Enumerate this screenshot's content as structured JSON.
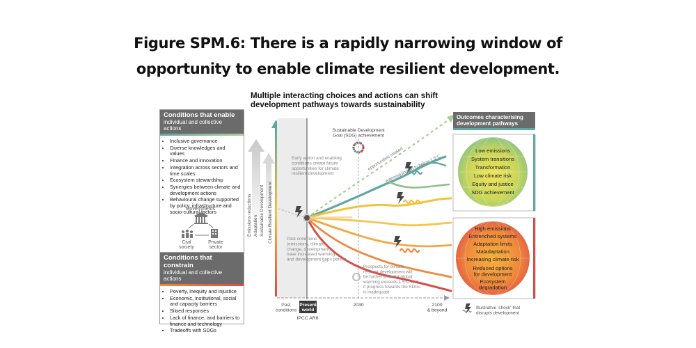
{
  "title": {
    "line1": "Figure SPM.6: There is a rapidly narrowing window of",
    "line2": "opportunity to enable climate resilient development."
  },
  "subtitle": {
    "line1": "Multiple interacting choices and actions can shift",
    "line2": "development pathways towards sustainability"
  },
  "enable_box": {
    "heading": "Conditions that enable",
    "subheading": "individual and collective actions",
    "items": [
      "Inclusive governance",
      "Diverse knowledges and values",
      "Finance and innovation",
      "Integration across sectors and time scales",
      "Ecosystem stewardship",
      "Synergies between climate and development actions",
      "Behavioural change supported by policy, infrastructure and socio-cultural factors"
    ],
    "actors": {
      "governments": "Governments",
      "civil_society": "Civil society",
      "private_sector": "Private sector"
    }
  },
  "constrain_box": {
    "heading": "Conditions that constrain",
    "subheading": "individual and collective actions",
    "items": [
      "Poverty, inequity and injustice",
      "Economic, institutional, social and capacity barriers",
      "Siloed responses",
      "Lack of finance, and barriers to finance and technology",
      "Tradeoffs with SDGs"
    ]
  },
  "vertical_labels": {
    "l1": "Emissions reductions",
    "l2": "Adaptation",
    "l3": "Sustainable Development",
    "axis": "Climate Resilient Development"
  },
  "annotations": {
    "sdg": "Sustainable Development Goal (SDG) achievement",
    "early_action": "Early action and enabling conditions create future opportunities for climate resilient development",
    "missed": "opportunities missed",
    "warming_limited": "warming limited to below 1.5°C",
    "past_conditions": "Past conditions (emissions, climate change, development) have increased warming and development gaps persist",
    "prospects": "Prospects for climate resilient development will be further limited if global warming exceeds 1.5°C and if progress towards the SDGs is inadequate"
  },
  "time_axis": {
    "past": "Past conditions",
    "present": "Present world",
    "ipcc": "IPCC AR6",
    "y2030": "2030",
    "y2100": "2100 & beyond"
  },
  "outcomes": {
    "heading": "Outcomes characterising development pathways",
    "positive": [
      "Low emissions",
      "System transitions",
      "Transformation",
      "Low climate risk",
      "Equity and justice",
      "SDG achievement"
    ],
    "negative": [
      "High emissions",
      "Entrenched systems",
      "Adaptation limits",
      "Maladaptation",
      "Increasing climate risk",
      "Reduced options for development",
      "Ecosystem degradation"
    ]
  },
  "legend": {
    "shock": "Illustrative 'shock' that disrupts development"
  },
  "colors": {
    "teal": "#5fa8a2",
    "yellow": "#f2c33a",
    "orange": "#ef8a3c",
    "red": "#dc4a45",
    "grey_head": "#6b6b6b",
    "dashed_green": "#a8cf8f"
  }
}
